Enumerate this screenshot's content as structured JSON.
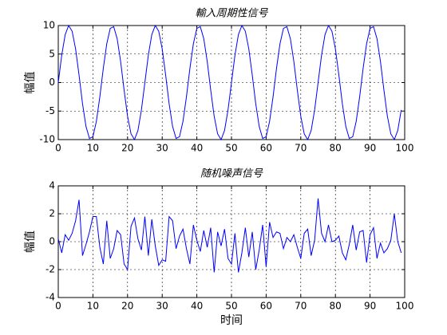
{
  "chart_data": [
    {
      "type": "line",
      "title": "輸入周期性信号",
      "ylabel": "幅值",
      "x": [
        0,
        1,
        2,
        3,
        4,
        5,
        6,
        7,
        8,
        9,
        10,
        11,
        12,
        13,
        14,
        15,
        16,
        17,
        18,
        19,
        20,
        21,
        22,
        23,
        24,
        25,
        26,
        27,
        28,
        29,
        30,
        31,
        32,
        33,
        34,
        35,
        36,
        37,
        38,
        39,
        40,
        41,
        42,
        43,
        44,
        45,
        46,
        47,
        48,
        49,
        50,
        51,
        52,
        53,
        54,
        55,
        56,
        57,
        58,
        59,
        60,
        61,
        62,
        63,
        64,
        65,
        66,
        67,
        68,
        69,
        70,
        71,
        72,
        73,
        74,
        75,
        76,
        77,
        78,
        79,
        80,
        81,
        82,
        83,
        84,
        85,
        86,
        87,
        88,
        89,
        90,
        91,
        92,
        93,
        94,
        95,
        96,
        97,
        98,
        99
      ],
      "values": [
        0,
        4.8,
        8.4,
        10.0,
        9.0,
        5.9,
        1.3,
        -3.7,
        -7.7,
        -9.8,
        -9.5,
        -6.8,
        -2.5,
        2.5,
        6.8,
        9.5,
        9.8,
        7.7,
        3.7,
        -1.3,
        -5.9,
        -9.0,
        -10.0,
        -8.4,
        -4.8,
        0,
        4.8,
        8.4,
        10.0,
        9.0,
        5.9,
        1.3,
        -3.7,
        -7.7,
        -9.8,
        -9.5,
        -6.8,
        -2.5,
        2.5,
        6.8,
        9.5,
        9.8,
        7.7,
        3.7,
        -1.3,
        -5.9,
        -9.0,
        -10.0,
        -8.4,
        -4.8,
        0,
        4.8,
        8.4,
        10.0,
        9.0,
        5.9,
        1.3,
        -3.7,
        -7.7,
        -9.8,
        -9.5,
        -6.8,
        -2.5,
        2.5,
        6.8,
        9.5,
        9.8,
        7.7,
        3.7,
        -1.3,
        -5.9,
        -9.0,
        -10.0,
        -8.4,
        -4.8,
        0,
        4.8,
        8.4,
        10.0,
        9.0,
        5.9,
        1.3,
        -3.7,
        -7.7,
        -9.8,
        -9.5,
        -6.8,
        -2.5,
        2.5,
        6.8,
        9.5,
        9.8,
        7.7,
        3.7,
        -1.3,
        -5.9,
        -9.0,
        -10.0,
        -8.4,
        -4.8
      ],
      "color": "#0000ff",
      "xlim": [
        0,
        100
      ],
      "ylim": [
        -10,
        10
      ],
      "xticks": [
        0,
        10,
        20,
        30,
        40,
        50,
        60,
        70,
        80,
        90,
        100
      ],
      "yticks": [
        -10,
        -5,
        0,
        5,
        10
      ],
      "grid": true
    },
    {
      "type": "line",
      "title": "随机噪声信号",
      "ylabel": "幅值",
      "xlabel": "时间",
      "x": [
        0,
        1,
        2,
        3,
        4,
        5,
        6,
        7,
        8,
        9,
        10,
        11,
        12,
        13,
        14,
        15,
        16,
        17,
        18,
        19,
        20,
        21,
        22,
        23,
        24,
        25,
        26,
        27,
        28,
        29,
        30,
        31,
        32,
        33,
        34,
        35,
        36,
        37,
        38,
        39,
        40,
        41,
        42,
        43,
        44,
        45,
        46,
        47,
        48,
        49,
        50,
        51,
        52,
        53,
        54,
        55,
        56,
        57,
        58,
        59,
        60,
        61,
        62,
        63,
        64,
        65,
        66,
        67,
        68,
        69,
        70,
        71,
        72,
        73,
        74,
        75,
        76,
        77,
        78,
        79,
        80,
        81,
        82,
        83,
        84,
        85,
        86,
        87,
        88,
        89,
        90,
        91,
        92,
        93,
        94,
        95,
        96,
        97,
        98,
        99
      ],
      "values": [
        0.2,
        -0.8,
        0.5,
        0.1,
        0.6,
        1.5,
        3.0,
        -1.0,
        -0.2,
        0.7,
        1.8,
        1.8,
        -0.4,
        -1.6,
        1.5,
        -1.2,
        -0.5,
        0.8,
        0.5,
        -1.6,
        -2.0,
        1.1,
        1.7,
        0.2,
        -0.6,
        1.8,
        -1.0,
        1.6,
        -0.3,
        -1.7,
        -1.3,
        -1.4,
        1.8,
        1.5,
        -0.5,
        0.4,
        0.9,
        -0.5,
        -1.6,
        1.2,
        0.1,
        -0.7,
        0.8,
        -0.4,
        1.0,
        -2.2,
        0.7,
        -0.3,
        0.9,
        -1.2,
        -1.6,
        0.6,
        -2.2,
        -0.8,
        1.0,
        -1.1,
        0.7,
        -2.0,
        -0.6,
        1.2,
        -1.8,
        1.4,
        0.3,
        0.7,
        0.6,
        -0.5,
        0.3,
        0.0,
        0.5,
        -0.4,
        -1.2,
        0.6,
        0.9,
        -1.0,
        0.1,
        3.1,
        0.6,
        0.0,
        1.2,
        0.0,
        0.1,
        0.4,
        -0.8,
        -1.3,
        -0.2,
        1.2,
        -0.6,
        0.7,
        0.8,
        -1.5,
        0.5,
        1.0,
        -1.2,
        -0.1,
        -0.8,
        -0.5,
        0.1,
        2.0,
        0.0,
        -0.8
      ],
      "color": "#0000ff",
      "xlim": [
        0,
        100
      ],
      "ylim": [
        -4,
        4
      ],
      "xticks": [
        0,
        10,
        20,
        30,
        40,
        50,
        60,
        70,
        80,
        90,
        100
      ],
      "yticks": [
        -4,
        -2,
        0,
        2,
        4
      ],
      "grid": true
    }
  ]
}
